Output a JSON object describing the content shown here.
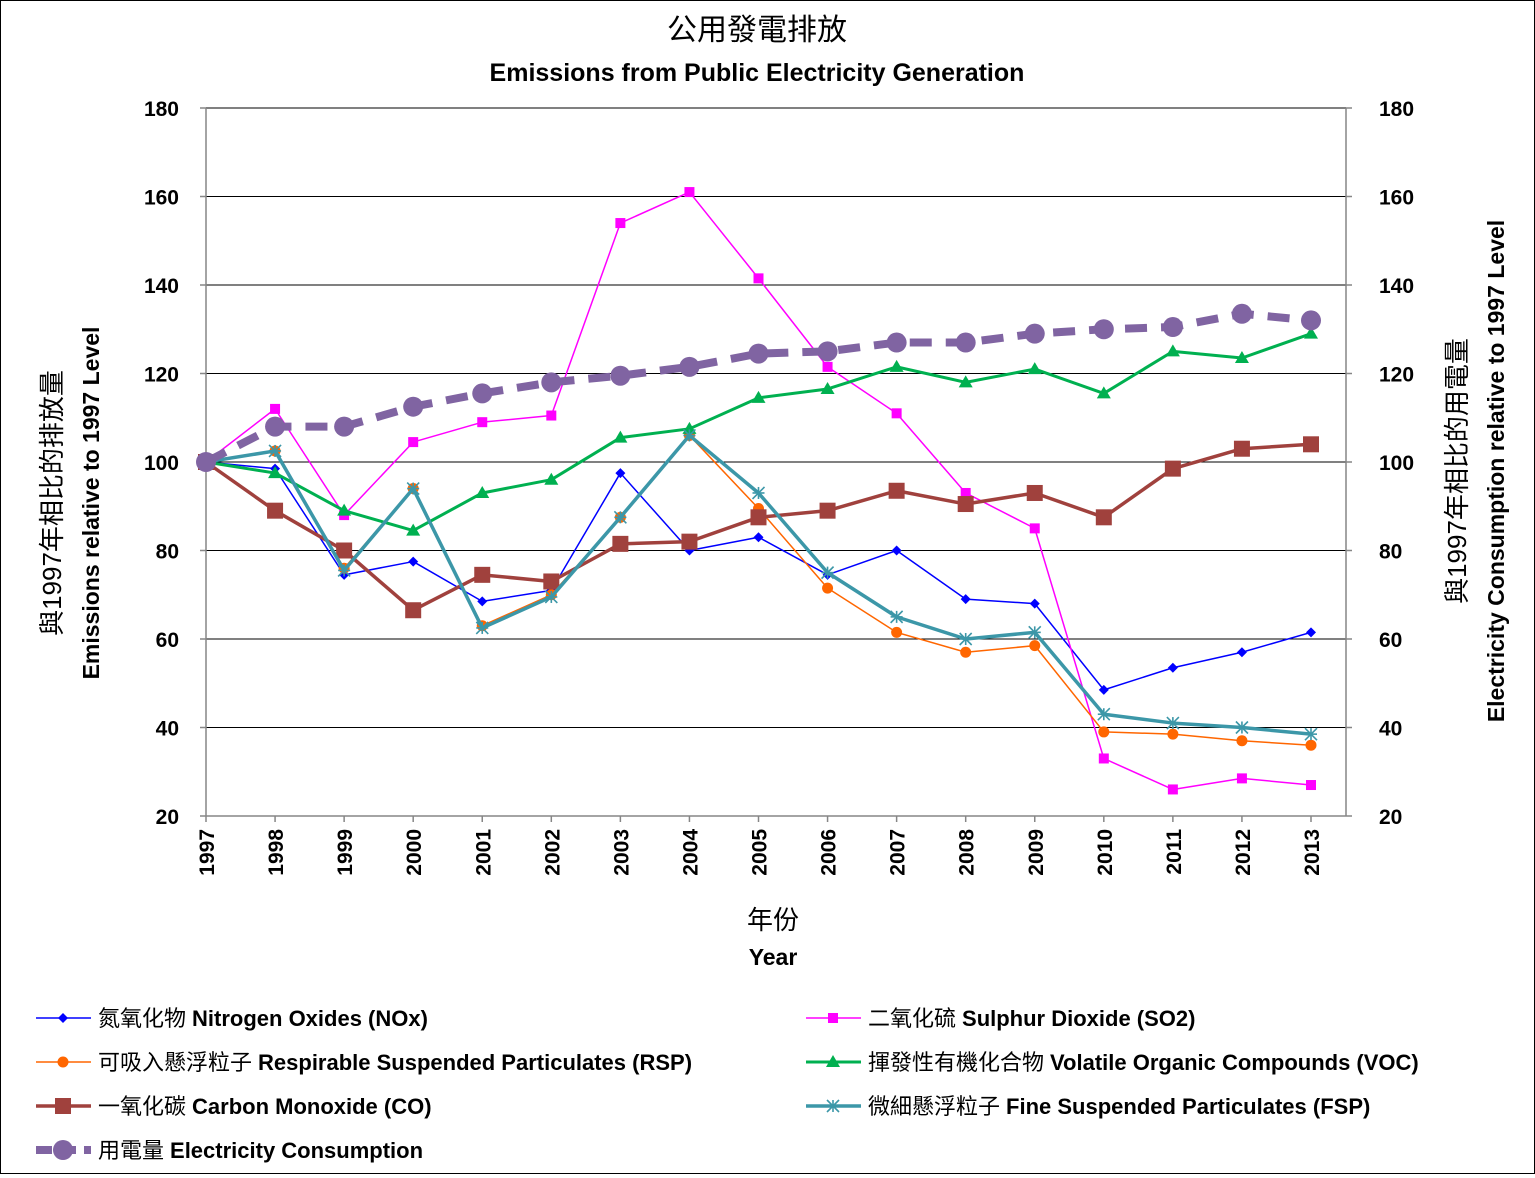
{
  "chart_data": {
    "type": "line",
    "title": "公用發電排放",
    "subtitle": "Emissions from Public Electricity Generation",
    "xlabel_zh": "年份",
    "xlabel_en": "Year",
    "ylabel_left_zh": "與1997年相比的排放量",
    "ylabel_left_en": "Emissions relative to 1997 Level",
    "ylabel_right_zh": "與1997年相比的用電量",
    "ylabel_right_en": "Electricity Consumption relative to 1997 Level",
    "ylim": [
      20,
      180
    ],
    "y_ticks": [
      "20",
      "40",
      "60",
      "80",
      "100",
      "120",
      "140",
      "160",
      "180"
    ],
    "y_ticks_right": [
      "20",
      "40",
      "60",
      "80",
      "100",
      "120",
      "140",
      "160",
      "180"
    ],
    "x_categories": [
      "1997",
      "1998",
      "1999",
      "2000",
      "2001",
      "2002",
      "2003",
      "2004",
      "2005",
      "2006",
      "2007",
      "2008",
      "2009",
      "2010",
      "2011",
      "2012",
      "2013"
    ],
    "grid": true,
    "legend_position": "bottom",
    "series": [
      {
        "name_zh": "氮氧化物",
        "name_en": "Nitrogen Oxides (NOx)",
        "color": "#0000ff",
        "marker": "diamond",
        "values": [
          100,
          98.5,
          74.5,
          77.5,
          68.5,
          71,
          97.5,
          80,
          83,
          74.5,
          80,
          69,
          68,
          48.5,
          53.5,
          57,
          61.5
        ]
      },
      {
        "name_zh": "二氧化硫",
        "name_en": "Sulphur Dioxide (SO2)",
        "color": "#ff00ff",
        "marker": "square",
        "values": [
          100,
          112,
          88,
          104.5,
          109,
          110.5,
          154,
          161,
          141.5,
          121.5,
          111,
          93,
          85,
          33,
          26,
          28.5,
          27
        ]
      },
      {
        "name_zh": "可吸入懸浮粒子",
        "name_en": "Respirable Suspended Particulates (RSP)",
        "color": "#ff6600",
        "marker": "circle",
        "values": [
          100,
          102.5,
          76,
          94,
          63,
          70,
          87.5,
          106,
          89.5,
          71.5,
          61.5,
          57,
          58.5,
          39,
          38.5,
          37,
          36
        ]
      },
      {
        "name_zh": "揮發性有機化合物",
        "name_en": "Volatile Organic Compounds (VOC)",
        "color": "#00b050",
        "marker": "triangle",
        "values": [
          100,
          97.5,
          89,
          84.5,
          93,
          96,
          105.5,
          107.5,
          114.5,
          116.5,
          121.5,
          118,
          121,
          115.5,
          125,
          123.5,
          129
        ]
      },
      {
        "name_zh": "一氧化碳",
        "name_en": "Carbon Monoxide (CO)",
        "color": "#a0413d",
        "marker": "square-large",
        "values": [
          100,
          89,
          80,
          66.5,
          74.5,
          73,
          81.5,
          82,
          87.5,
          89,
          93.5,
          90.5,
          93,
          87.5,
          98.5,
          103,
          104
        ]
      },
      {
        "name_zh": "微細懸浮粒子",
        "name_en": "Fine Suspended Particulates (FSP)",
        "color": "#3c97a8",
        "marker": "star",
        "values": [
          100,
          102.5,
          75.5,
          94,
          62.5,
          69.5,
          87.5,
          106,
          93,
          75,
          65,
          60,
          61.5,
          43,
          41,
          40,
          38.5
        ]
      },
      {
        "name_zh": "用電量",
        "name_en": "Electricity Consumption",
        "color": "#8064a2",
        "marker": "big-circle",
        "axis": "right",
        "values": [
          100,
          108,
          108,
          112.5,
          115.5,
          118,
          119.5,
          121.5,
          124.5,
          125,
          127,
          127,
          129,
          130,
          130.5,
          133.5,
          132
        ]
      }
    ]
  }
}
